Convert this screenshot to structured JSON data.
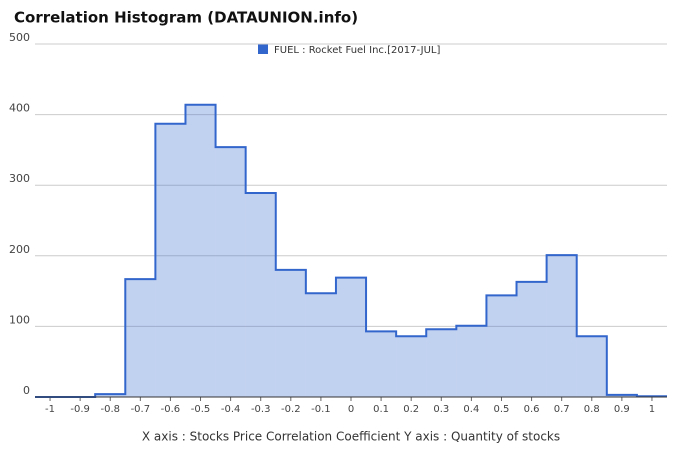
{
  "chart_data": {
    "type": "histogram",
    "title": "Correlation Histogram (DATAUNION.info)",
    "series": [
      {
        "name": "FUEL : Rocket Fuel Inc.[2017-JUL]",
        "color": "#3366cc",
        "counts": [
          0,
          0,
          4,
          167,
          387,
          414,
          354,
          289,
          180,
          147,
          169,
          93,
          86,
          96,
          101,
          144,
          163,
          201,
          86,
          3,
          1
        ]
      }
    ],
    "bins": [
      -1.05,
      -0.95,
      -0.85,
      -0.75,
      -0.65,
      -0.55,
      -0.45,
      -0.35,
      -0.25,
      -0.15,
      -0.05,
      0.05,
      0.15,
      0.25,
      0.35,
      0.45,
      0.55,
      0.65,
      0.75,
      0.85,
      0.95,
      1.05
    ],
    "xlim": [
      -1.05,
      1.05
    ],
    "xticks": [
      -1,
      -0.9,
      -0.8,
      -0.7,
      -0.6,
      -0.5,
      -0.4,
      -0.3,
      -0.2,
      -0.1,
      0,
      0.1,
      0.2,
      0.3,
      0.4,
      0.5,
      0.6,
      0.7,
      0.8,
      0.9,
      1
    ],
    "ylim": [
      0,
      500
    ],
    "yticks": [
      0,
      100,
      200,
      300,
      400,
      500
    ],
    "grid": true,
    "x_label": "X axis : Stocks Price Correlation Coefficient  Y axis : Quantity of stocks"
  }
}
